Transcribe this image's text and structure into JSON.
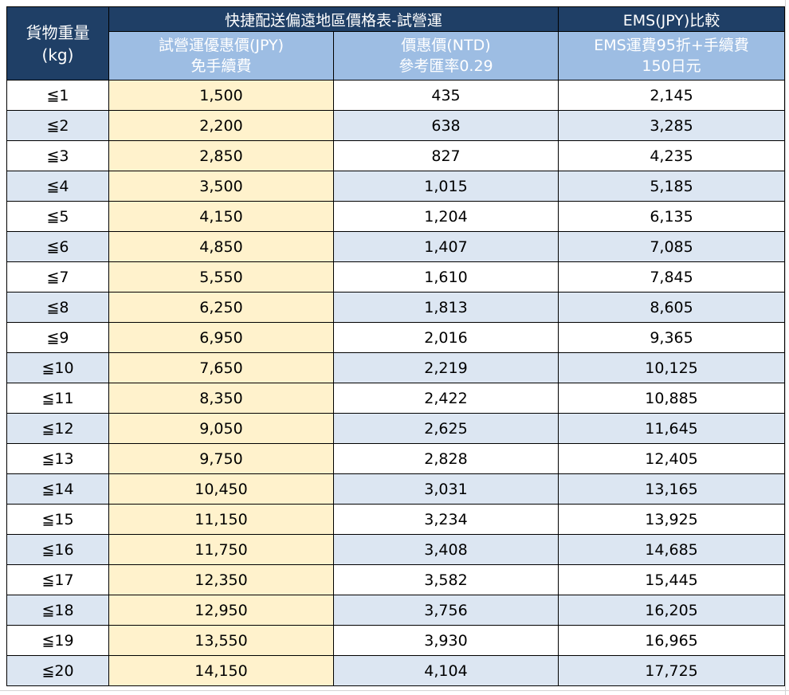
{
  "header": {
    "weight_label_line1": "貨物重量",
    "weight_label_line2": "(kg)",
    "group1_title": "快捷配送偏遠地區價格表-試營運",
    "group2_title": "EMS(JPY)比較",
    "col_price_jpy_line1": "試營運優惠價(JPY)",
    "col_price_jpy_line2": "免手續費",
    "col_price_ntd_line1": "價惠價(NTD)",
    "col_price_ntd_line2": "參考匯率0.29",
    "col_ems_line1": "EMS運費95折+手續費",
    "col_ems_line2": "150日元"
  },
  "colors": {
    "header_dark": "#1f3f66",
    "header_light": "#9dbde3",
    "highlight_column": "#fff2cc",
    "striped_row": "#dce6f2"
  },
  "rows": [
    {
      "weight": "≦1",
      "jpy": "1,500",
      "ntd": "435",
      "ems": "2,145"
    },
    {
      "weight": "≦2",
      "jpy": "2,200",
      "ntd": "638",
      "ems": "3,285"
    },
    {
      "weight": "≦3",
      "jpy": "2,850",
      "ntd": "827",
      "ems": "4,235"
    },
    {
      "weight": "≦4",
      "jpy": "3,500",
      "ntd": "1,015",
      "ems": "5,185"
    },
    {
      "weight": "≦5",
      "jpy": "4,150",
      "ntd": "1,204",
      "ems": "6,135"
    },
    {
      "weight": "≦6",
      "jpy": "4,850",
      "ntd": "1,407",
      "ems": "7,085"
    },
    {
      "weight": "≦7",
      "jpy": "5,550",
      "ntd": "1,610",
      "ems": "7,845"
    },
    {
      "weight": "≦8",
      "jpy": "6,250",
      "ntd": "1,813",
      "ems": "8,605"
    },
    {
      "weight": "≦9",
      "jpy": "6,950",
      "ntd": "2,016",
      "ems": "9,365"
    },
    {
      "weight": "≦10",
      "jpy": "7,650",
      "ntd": "2,219",
      "ems": "10,125"
    },
    {
      "weight": "≦11",
      "jpy": "8,350",
      "ntd": "2,422",
      "ems": "10,885"
    },
    {
      "weight": "≦12",
      "jpy": "9,050",
      "ntd": "2,625",
      "ems": "11,645"
    },
    {
      "weight": "≦13",
      "jpy": "9,750",
      "ntd": "2,828",
      "ems": "12,405"
    },
    {
      "weight": "≦14",
      "jpy": "10,450",
      "ntd": "3,031",
      "ems": "13,165"
    },
    {
      "weight": "≦15",
      "jpy": "11,150",
      "ntd": "3,234",
      "ems": "13,925"
    },
    {
      "weight": "≦16",
      "jpy": "11,750",
      "ntd": "3,408",
      "ems": "14,685"
    },
    {
      "weight": "≦17",
      "jpy": "12,350",
      "ntd": "3,582",
      "ems": "15,445"
    },
    {
      "weight": "≦18",
      "jpy": "12,950",
      "ntd": "3,756",
      "ems": "16,205"
    },
    {
      "weight": "≦19",
      "jpy": "13,550",
      "ntd": "3,930",
      "ems": "16,965"
    },
    {
      "weight": "≦20",
      "jpy": "14,150",
      "ntd": "4,104",
      "ems": "17,725"
    }
  ]
}
